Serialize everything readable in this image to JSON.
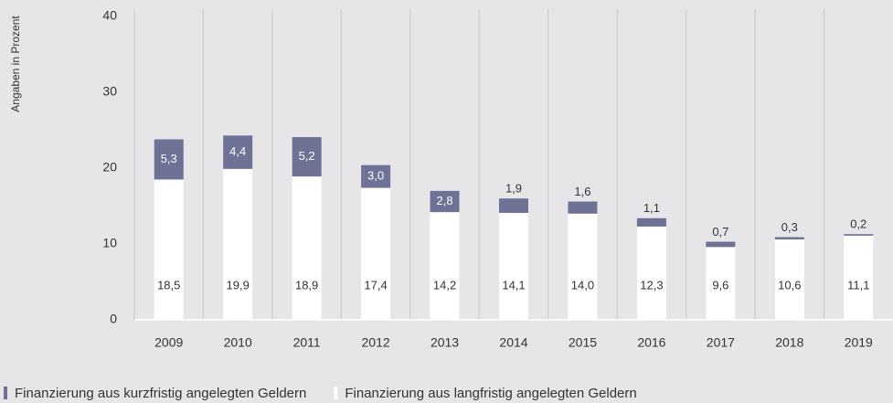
{
  "chart_data": {
    "type": "stacked-bar",
    "y_label": "Angaben in Prozent",
    "categories": [
      "2009",
      "2010",
      "2011",
      "2012",
      "2013",
      "2014",
      "2015",
      "2016",
      "2017",
      "2018",
      "2019"
    ],
    "series": [
      {
        "name": "Finanzierung aus kurzfristig angelegten Geldern",
        "color": "#6e7396",
        "values": [
          5.3,
          4.4,
          5.2,
          3.0,
          2.8,
          1.9,
          1.6,
          1.1,
          0.7,
          0.3,
          0.2
        ],
        "value_labels": [
          "5,3",
          "4,4",
          "5,2",
          "3,0",
          "2,8",
          "1,9",
          "1,6",
          "1,1",
          "0,7",
          "0,3",
          "0,2"
        ]
      },
      {
        "name": "Finanzierung aus langfristig angelegten Geldern",
        "color": "#ffffff",
        "values": [
          18.5,
          19.9,
          18.9,
          17.4,
          14.2,
          14.1,
          14.0,
          12.3,
          9.6,
          10.6,
          11.1
        ],
        "value_labels": [
          "18,5",
          "19,9",
          "18,9",
          "17,4",
          "14,2",
          "14,1",
          "14,0",
          "12,3",
          "9,6",
          "10,6",
          "11,1"
        ]
      }
    ],
    "ylim": [
      0,
      40
    ],
    "yticks": [
      0,
      10,
      20,
      30,
      40
    ],
    "grid": true
  }
}
